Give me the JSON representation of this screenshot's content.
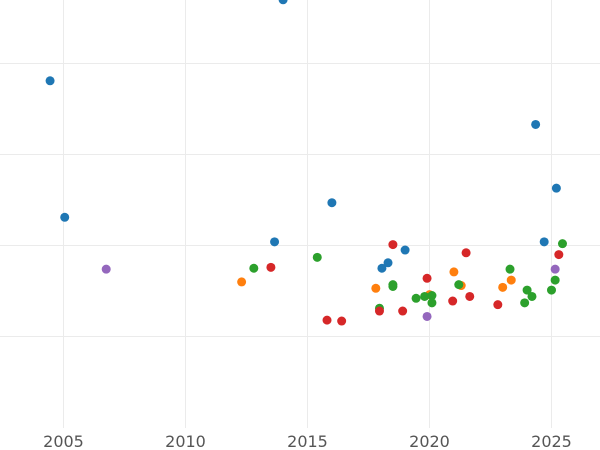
{
  "chart_data": {
    "type": "scatter",
    "title": "",
    "xlabel": "",
    "ylabel": "",
    "xlim": [
      2002.6,
      2026.6
    ],
    "ylim": [
      -0.08,
      4.62
    ],
    "x_ticks": [
      2005,
      2010,
      2015,
      2020,
      2025
    ],
    "x_tick_labels": [
      "2005",
      "2010",
      "2015",
      "2020",
      "2025"
    ],
    "y_gridlines": [
      0,
      1,
      2,
      3,
      4
    ],
    "grid": true,
    "legend": "none",
    "series": [
      {
        "color": "#1f77b4",
        "points": [
          {
            "x": 2004.45,
            "y": 2.81
          },
          {
            "x": 2005.05,
            "y": 1.31
          },
          {
            "x": 2013.65,
            "y": 1.04
          },
          {
            "x": 2014.0,
            "y": 3.7
          },
          {
            "x": 2016.0,
            "y": 1.47
          },
          {
            "x": 2018.05,
            "y": 0.75
          },
          {
            "x": 2018.3,
            "y": 0.81
          },
          {
            "x": 2019.0,
            "y": 0.95
          },
          {
            "x": 2024.35,
            "y": 2.33
          },
          {
            "x": 2024.7,
            "y": 1.04
          },
          {
            "x": 2025.2,
            "y": 1.63
          }
        ]
      },
      {
        "color": "#ff7f0e",
        "points": [
          {
            "x": 2012.3,
            "y": 0.6
          },
          {
            "x": 2017.8,
            "y": 0.53
          },
          {
            "x": 2020.0,
            "y": 0.46
          },
          {
            "x": 2021.0,
            "y": 0.71
          },
          {
            "x": 2021.3,
            "y": 0.56
          },
          {
            "x": 2023.0,
            "y": 0.54
          },
          {
            "x": 2023.35,
            "y": 0.62
          }
        ]
      },
      {
        "color": "#2ca02c",
        "points": [
          {
            "x": 2012.8,
            "y": 0.75
          },
          {
            "x": 2015.4,
            "y": 0.87
          },
          {
            "x": 2017.95,
            "y": 0.31
          },
          {
            "x": 2018.5,
            "y": 0.55
          },
          {
            "x": 2018.5,
            "y": 0.57
          },
          {
            "x": 2019.45,
            "y": 0.42
          },
          {
            "x": 2019.8,
            "y": 0.44
          },
          {
            "x": 2020.1,
            "y": 0.37
          },
          {
            "x": 2020.1,
            "y": 0.45
          },
          {
            "x": 2021.2,
            "y": 0.57
          },
          {
            "x": 2023.3,
            "y": 0.74
          },
          {
            "x": 2023.9,
            "y": 0.37
          },
          {
            "x": 2024.0,
            "y": 0.51
          },
          {
            "x": 2024.2,
            "y": 0.44
          },
          {
            "x": 2025.0,
            "y": 0.51
          },
          {
            "x": 2025.15,
            "y": 0.62
          },
          {
            "x": 2025.45,
            "y": 1.02
          }
        ]
      },
      {
        "color": "#d62728",
        "points": [
          {
            "x": 2013.5,
            "y": 0.76
          },
          {
            "x": 2015.8,
            "y": 0.18
          },
          {
            "x": 2016.4,
            "y": 0.17
          },
          {
            "x": 2017.95,
            "y": 0.28
          },
          {
            "x": 2018.5,
            "y": 1.01
          },
          {
            "x": 2018.9,
            "y": 0.28
          },
          {
            "x": 2019.9,
            "y": 0.64
          },
          {
            "x": 2020.95,
            "y": 0.39
          },
          {
            "x": 2021.5,
            "y": 0.92
          },
          {
            "x": 2021.65,
            "y": 0.44
          },
          {
            "x": 2022.8,
            "y": 0.35
          },
          {
            "x": 2025.3,
            "y": 0.9
          }
        ]
      },
      {
        "color": "#9467bd",
        "points": [
          {
            "x": 2006.75,
            "y": 0.74
          },
          {
            "x": 2019.9,
            "y": 0.22
          },
          {
            "x": 2025.15,
            "y": 0.74
          }
        ]
      }
    ]
  }
}
